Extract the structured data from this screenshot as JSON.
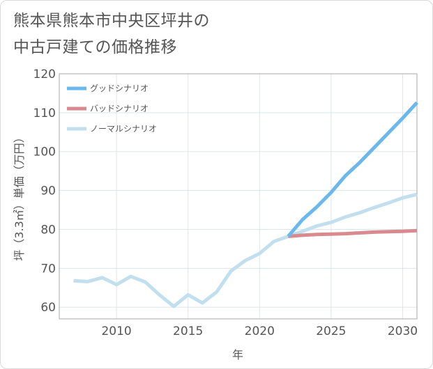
{
  "title_line1": "熊本県熊本市中央区坪井の",
  "title_line2": "中古戸建ての価格推移",
  "chart_data": {
    "type": "line",
    "title": "熊本県熊本市中央区坪井の中古戸建ての価格推移",
    "xlabel": "年",
    "ylabel": "坪（3.3㎡）単価（万円）",
    "xlim": [
      2006,
      2031
    ],
    "ylim": [
      57,
      120
    ],
    "xticks": [
      2010,
      2015,
      2020,
      2025,
      2030
    ],
    "yticks": [
      60,
      70,
      80,
      90,
      100,
      110,
      120
    ],
    "grid": true,
    "legend_position": "top-left",
    "series": [
      {
        "name": "グッドシナリオ",
        "color": "#6bb8ec",
        "x": [
          2022,
          2023,
          2024,
          2025,
          2026,
          2027,
          2028,
          2029,
          2030,
          2031
        ],
        "y": [
          78.2,
          82.5,
          85.8,
          89.5,
          93.8,
          97.2,
          101,
          104.8,
          108.6,
          112.6
        ]
      },
      {
        "name": "バッドシナリオ",
        "color": "#d98a8e",
        "x": [
          2022,
          2023,
          2024,
          2025,
          2026,
          2027,
          2028,
          2029,
          2030,
          2031
        ],
        "y": [
          78.2,
          78.5,
          78.7,
          78.8,
          78.9,
          79.1,
          79.3,
          79.4,
          79.5,
          79.7
        ]
      },
      {
        "name": "ノーマルシナリオ",
        "color": "#c2dfee",
        "x": [
          2007,
          2008,
          2009,
          2010,
          2011,
          2012,
          2013,
          2014,
          2015,
          2016,
          2017,
          2018,
          2019,
          2020,
          2021,
          2022,
          2023,
          2024,
          2025,
          2026,
          2027,
          2028,
          2029,
          2030,
          2031
        ],
        "y": [
          66.8,
          66.6,
          67.6,
          65.8,
          67.9,
          66.5,
          63.2,
          60.2,
          63.2,
          61.1,
          63.9,
          69.3,
          72,
          73.8,
          76.9,
          78.2,
          79.5,
          80.9,
          81.8,
          83.2,
          84.3,
          85.6,
          86.8,
          88.1,
          89
        ]
      }
    ]
  }
}
